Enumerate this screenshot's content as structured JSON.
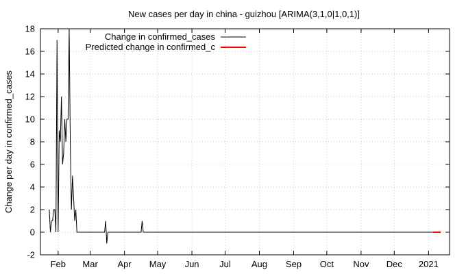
{
  "chart_data": {
    "type": "line",
    "title": "New cases per day in china - guizhou [ARIMA(3,1,0|1,0,1)]",
    "xlabel": "",
    "ylabel": "Change per day in confirmed_cases",
    "xlim": [
      "2020-01-16",
      "2021-01-20"
    ],
    "ylim": [
      -2,
      18
    ],
    "yticks": [
      -2,
      0,
      2,
      4,
      6,
      8,
      10,
      12,
      14,
      16,
      18
    ],
    "xticks": [
      {
        "date": "2020-02-01",
        "label": "Feb"
      },
      {
        "date": "2020-03-01",
        "label": "Mar"
      },
      {
        "date": "2020-04-01",
        "label": "Apr"
      },
      {
        "date": "2020-05-01",
        "label": "May"
      },
      {
        "date": "2020-06-01",
        "label": "Jun"
      },
      {
        "date": "2020-07-01",
        "label": "Jul"
      },
      {
        "date": "2020-08-01",
        "label": "Aug"
      },
      {
        "date": "2020-09-01",
        "label": "Sep"
      },
      {
        "date": "2020-10-01",
        "label": "Oct"
      },
      {
        "date": "2020-11-01",
        "label": "Nov"
      },
      {
        "date": "2020-12-01",
        "label": "Dec"
      },
      {
        "date": "2021-01-01",
        "label": "2021"
      }
    ],
    "grid": true,
    "legend_position": "top-left",
    "series": [
      {
        "name": "Change in confirmed_cases",
        "color": "#000000",
        "points": [
          [
            "2020-01-24",
            2
          ],
          [
            "2020-01-25",
            0
          ],
          [
            "2020-01-26",
            1
          ],
          [
            "2020-01-27",
            1
          ],
          [
            "2020-01-28",
            2
          ],
          [
            "2020-01-29",
            2
          ],
          [
            "2020-01-30",
            0
          ],
          [
            "2020-01-31",
            17
          ],
          [
            "2020-02-01",
            0
          ],
          [
            "2020-02-02",
            9
          ],
          [
            "2020-02-03",
            8
          ],
          [
            "2020-02-04",
            12
          ],
          [
            "2020-02-05",
            6
          ],
          [
            "2020-02-06",
            7
          ],
          [
            "2020-02-07",
            10
          ],
          [
            "2020-02-08",
            8
          ],
          [
            "2020-02-09",
            10
          ],
          [
            "2020-02-10",
            10
          ],
          [
            "2020-02-11",
            18
          ],
          [
            "2020-02-12",
            8
          ],
          [
            "2020-02-13",
            2
          ],
          [
            "2020-02-14",
            5
          ],
          [
            "2020-02-15",
            3
          ],
          [
            "2020-02-16",
            1
          ],
          [
            "2020-02-17",
            2
          ],
          [
            "2020-02-18",
            0
          ],
          [
            "2020-03-14",
            0
          ],
          [
            "2020-03-15",
            1
          ],
          [
            "2020-03-16",
            -1
          ],
          [
            "2020-03-17",
            0
          ],
          [
            "2020-04-16",
            0
          ],
          [
            "2020-04-17",
            1
          ],
          [
            "2020-04-18",
            0
          ],
          [
            "2021-01-05",
            0
          ]
        ]
      },
      {
        "name": "Predicted change in confirmed_c",
        "color": "#ff0000",
        "points": [
          [
            "2021-01-05",
            0
          ],
          [
            "2021-01-12",
            0
          ]
        ]
      }
    ]
  }
}
